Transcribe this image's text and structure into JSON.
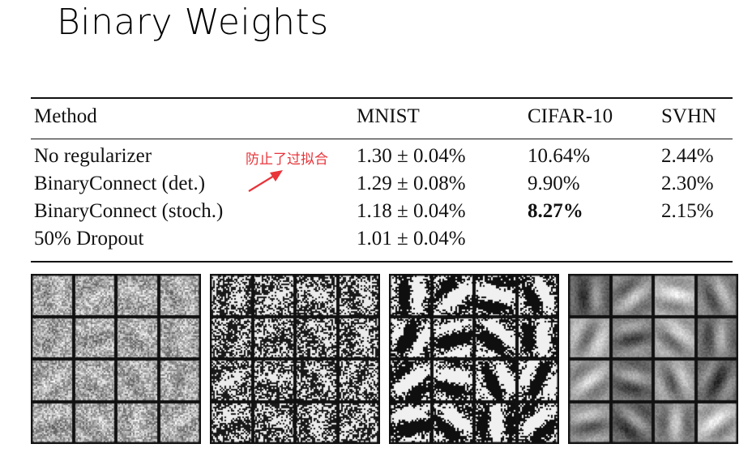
{
  "title": "Binary Weights",
  "table": {
    "headers": [
      "Method",
      "MNIST",
      "CIFAR-10",
      "SVHN"
    ],
    "rows": [
      {
        "method": "No regularizer",
        "mnist": "1.30 ± 0.04%",
        "cifar": "10.64%",
        "svhn": "2.44%"
      },
      {
        "method": "BinaryConnect (det.)",
        "mnist": "1.29 ± 0.08%",
        "cifar": "9.90%",
        "svhn": "2.30%"
      },
      {
        "method": "BinaryConnect (stoch.)",
        "mnist": "1.18 ± 0.04%",
        "cifar": "8.27%",
        "svhn": "2.15%"
      },
      {
        "method": "50% Dropout",
        "mnist": "1.01 ± 0.04%",
        "cifar": "",
        "svhn": ""
      }
    ]
  },
  "annotation": {
    "text": "防止了过拟合",
    "color": "#e8343a"
  },
  "weight_panels": [
    {
      "style": "gray-noise"
    },
    {
      "style": "binary-noise"
    },
    {
      "style": "binary-strokes"
    },
    {
      "style": "smooth-gray"
    }
  ]
}
